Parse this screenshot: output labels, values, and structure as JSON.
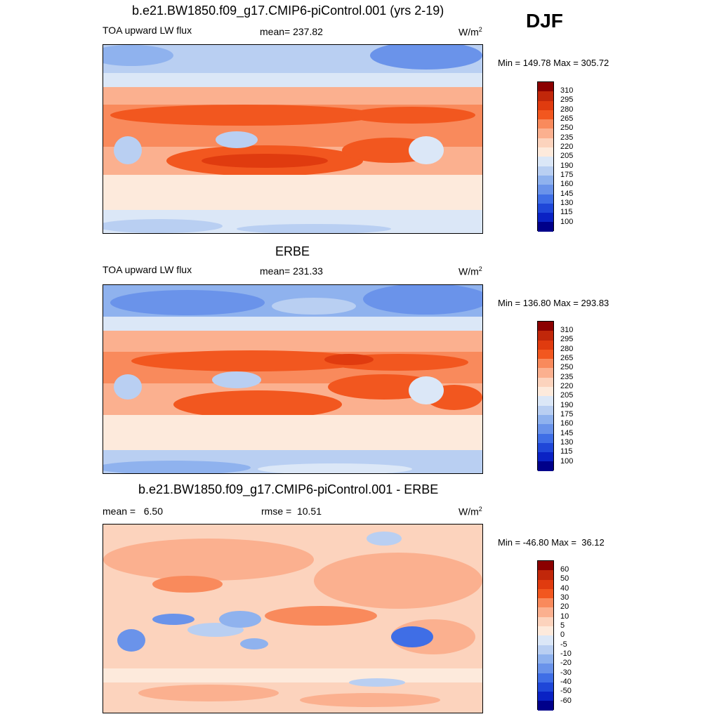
{
  "season": "DJF",
  "panels": [
    {
      "title": "b.e21.BW1850.f09_g17.CMIP6-piControl.001 (yrs 2-19)",
      "left_label": "TOA upward LW flux",
      "center_label": "mean= 237.82",
      "units": "W/m",
      "units_sup": "2",
      "minmax": "Min = 149.78 Max = 305.72",
      "colorbar_ticks": [
        "310",
        "295",
        "280",
        "265",
        "250",
        "235",
        "220",
        "205",
        "190",
        "175",
        "160",
        "145",
        "130",
        "115",
        "100"
      ]
    },
    {
      "title": "ERBE",
      "left_label": "TOA upward LW flux",
      "center_label": "mean= 231.33",
      "units": "W/m",
      "units_sup": "2",
      "minmax": "Min = 136.80 Max = 293.83",
      "colorbar_ticks": [
        "310",
        "295",
        "280",
        "265",
        "250",
        "235",
        "220",
        "205",
        "190",
        "175",
        "160",
        "145",
        "130",
        "115",
        "100"
      ]
    },
    {
      "title": "b.e21.BW1850.f09_g17.CMIP6-piControl.001 - ERBE",
      "left_label": "mean =   6.50",
      "center_label": "rmse =  10.51",
      "units": "W/m",
      "units_sup": "2",
      "minmax": "Min = -46.80 Max =  36.12",
      "colorbar_ticks": [
        "60",
        "50",
        "40",
        "30",
        "20",
        "10",
        "5",
        "0",
        "-5",
        "-10",
        "-20",
        "-30",
        "-40",
        "-50",
        "-60"
      ]
    }
  ],
  "colors": {
    "flux_scale": [
      "#8b0000",
      "#c1270a",
      "#e03b0f",
      "#f2571f",
      "#f98a5c",
      "#fbb08f",
      "#fcd3bd",
      "#fdeadc",
      "#dbe7f7",
      "#b9cff2",
      "#8fb2ee",
      "#6a93ea",
      "#3f6ee6",
      "#1f47d8",
      "#0a22c4",
      "#00008a"
    ],
    "diff_scale": [
      "#8b0000",
      "#c1270a",
      "#e03b0f",
      "#f2571f",
      "#f98a5c",
      "#fbb08f",
      "#fcd3bd",
      "#fdeadc",
      "#dbe7f7",
      "#b9cff2",
      "#8fb2ee",
      "#6a93ea",
      "#3f6ee6",
      "#1f47d8",
      "#0a22c4",
      "#00008a"
    ]
  }
}
